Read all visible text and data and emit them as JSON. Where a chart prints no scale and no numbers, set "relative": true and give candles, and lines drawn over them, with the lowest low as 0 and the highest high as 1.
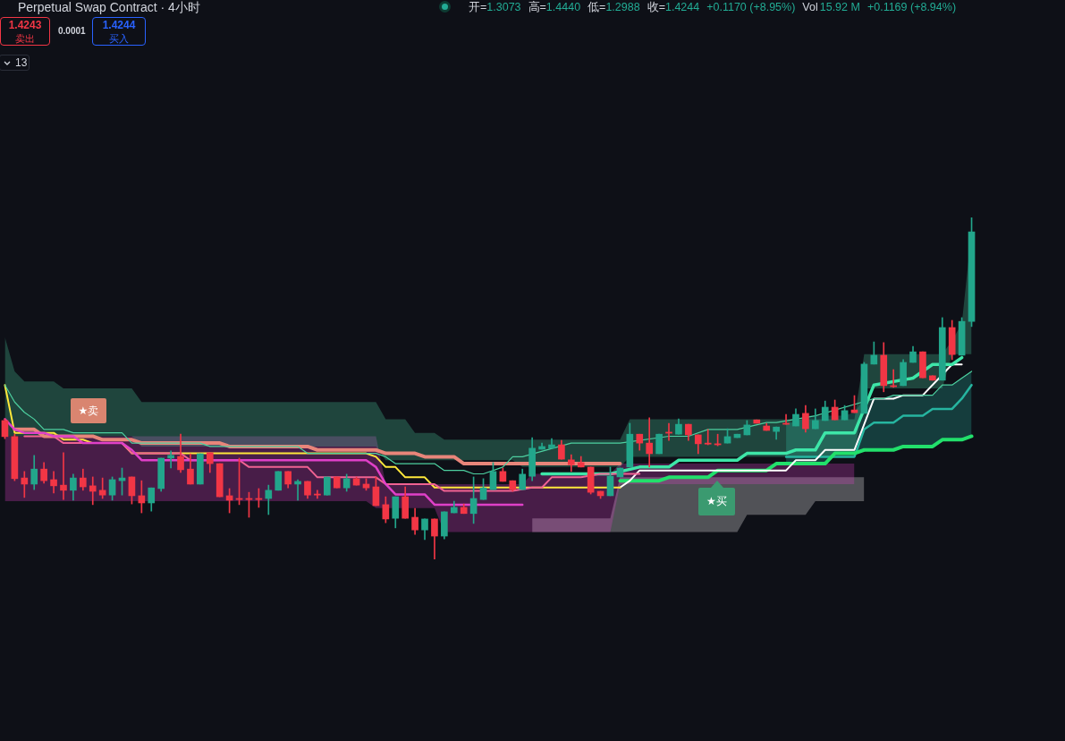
{
  "chart_data": {
    "type": "candlestick",
    "relative": true,
    "title": "Perpetual Swap Contract · 4小时",
    "annotations": [
      "开=",
      "1.3073",
      "高=",
      "1.4440",
      "低=",
      "1.2988",
      "收=",
      "1.4244",
      "+0.1170 (+8.95%)",
      "Vol",
      "15.92 M",
      "+0.1169 (+8.94%)",
      "1.4243",
      "卖出",
      "0.0001",
      "1.4244",
      "买入",
      "13",
      "★卖",
      "★买"
    ],
    "categories": [
      null,
      null,
      null,
      null,
      null,
      null,
      null,
      null,
      null,
      null,
      null,
      null,
      null,
      null,
      null,
      null,
      null,
      null,
      null,
      null,
      null,
      null,
      null,
      null,
      null,
      null,
      null,
      null,
      null,
      null,
      null,
      null,
      null,
      null,
      null,
      null,
      null,
      null,
      null,
      null,
      null,
      null,
      null,
      null,
      null,
      null,
      null,
      null,
      null,
      null,
      null,
      null,
      null,
      null,
      null,
      null,
      null,
      null,
      null,
      null,
      null,
      null,
      null,
      null,
      null,
      null,
      null,
      null,
      null,
      null,
      null,
      null,
      null,
      null,
      null,
      null,
      null,
      null,
      null,
      null,
      null,
      null,
      null,
      null,
      null,
      null,
      null,
      null,
      null,
      null,
      null,
      null,
      null,
      null,
      null,
      null,
      null,
      null,
      null,
      null
    ],
    "ohlc": [
      [
        0.406,
        0.411,
        0.353,
        0.359
      ],
      [
        0.359,
        0.366,
        0.23,
        0.236
      ],
      [
        0.238,
        0.257,
        0.181,
        0.22
      ],
      [
        0.22,
        0.304,
        0.204,
        0.264
      ],
      [
        0.264,
        0.283,
        0.223,
        0.23
      ],
      [
        0.233,
        0.257,
        0.194,
        0.215
      ],
      [
        0.217,
        0.312,
        0.175,
        0.202
      ],
      [
        0.202,
        0.249,
        0.173,
        0.238
      ],
      [
        0.238,
        0.264,
        0.202,
        0.212
      ],
      [
        0.215,
        0.241,
        0.16,
        0.199
      ],
      [
        0.202,
        0.238,
        0.178,
        0.188
      ],
      [
        0.188,
        0.241,
        0.173,
        0.233
      ],
      [
        0.23,
        0.267,
        0.188,
        0.238
      ],
      [
        0.241,
        0.241,
        0.162,
        0.186
      ],
      [
        0.186,
        0.23,
        0.136,
        0.165
      ],
      [
        0.165,
        0.209,
        0.141,
        0.209
      ],
      [
        0.207,
        0.296,
        0.199,
        0.296
      ],
      [
        0.296,
        0.317,
        0.267,
        0.304
      ],
      [
        0.301,
        0.366,
        0.254,
        0.262
      ],
      [
        0.264,
        0.309,
        0.22,
        0.22
      ],
      [
        0.22,
        0.309,
        0.22,
        0.309
      ],
      [
        0.312,
        0.312,
        0.254,
        0.28
      ],
      [
        0.28,
        0.28,
        0.183,
        0.183
      ],
      [
        0.186,
        0.207,
        0.136,
        0.173
      ],
      [
        0.178,
        0.296,
        0.16,
        0.175
      ],
      [
        0.178,
        0.196,
        0.123,
        0.175
      ],
      [
        0.178,
        0.207,
        0.152,
        0.175
      ],
      [
        0.178,
        0.217,
        0.131,
        0.202
      ],
      [
        0.202,
        0.257,
        0.202,
        0.257
      ],
      [
        0.257,
        0.257,
        0.209,
        0.22
      ],
      [
        0.22,
        0.233,
        0.173,
        0.228
      ],
      [
        0.228,
        0.228,
        0.178,
        0.188
      ],
      [
        0.191,
        0.202,
        0.178,
        0.188
      ],
      [
        0.188,
        0.241,
        0.188,
        0.241
      ],
      [
        0.241,
        0.241,
        0.209,
        0.209
      ],
      [
        0.209,
        0.249,
        0.199,
        0.236
      ],
      [
        0.236,
        0.241,
        0.217,
        0.217
      ],
      [
        0.22,
        0.236,
        0.202,
        0.209
      ],
      [
        0.212,
        0.241,
        0.157,
        0.157
      ],
      [
        0.16,
        0.183,
        0.107,
        0.118
      ],
      [
        0.12,
        0.183,
        0.092,
        0.183
      ],
      [
        0.183,
        0.212,
        0.12,
        0.12
      ],
      [
        0.123,
        0.149,
        0.073,
        0.086
      ],
      [
        0.086,
        0.118,
        0.058,
        0.118
      ],
      [
        0.118,
        0.118,
        0,
        0.068
      ],
      [
        0.068,
        0.139,
        0.06,
        0.139
      ],
      [
        0.136,
        0.17,
        0.136,
        0.152
      ],
      [
        0.152,
        0.162,
        0.134,
        0.134
      ],
      [
        0.134,
        0.241,
        0.105,
        0.178
      ],
      [
        0.175,
        0.236,
        0.175,
        0.209
      ],
      [
        0.204,
        0.283,
        0.204,
        0.257
      ],
      [
        0.257,
        0.267,
        0.228,
        0.228
      ],
      [
        0.23,
        0.23,
        0.199,
        0.204
      ],
      [
        0.204,
        0.264,
        0.204,
        0.249
      ],
      [
        0.243,
        0.356,
        0.23,
        0.325
      ],
      [
        0.322,
        0.34,
        0.322,
        0.33
      ],
      [
        0.325,
        0.353,
        0.325,
        0.335
      ],
      [
        0.335,
        0.348,
        0.293,
        0.293
      ],
      [
        0.291,
        0.306,
        0.257,
        0.277
      ],
      [
        0.283,
        0.301,
        0.27,
        0.27
      ],
      [
        0.27,
        0.27,
        0.191,
        0.196
      ],
      [
        0.199,
        0.199,
        0.178,
        0.186
      ],
      [
        0.186,
        0.27,
        0.186,
        0.243
      ],
      [
        0.241,
        0.267,
        0.241,
        0.267
      ],
      [
        0.27,
        0.398,
        0.27,
        0.366
      ],
      [
        0.366,
        0.366,
        0.319,
        0.34
      ],
      [
        0.34,
        0.414,
        0.27,
        0.309
      ],
      [
        0.309,
        0.366,
        0.309,
        0.366
      ],
      [
        0.372,
        0.398,
        0.348,
        0.369
      ],
      [
        0.366,
        0.411,
        0.366,
        0.395
      ],
      [
        0.395,
        0.395,
        0.348,
        0.364
      ],
      [
        0.364,
        0.364,
        0.309,
        0.338
      ],
      [
        0.34,
        0.38,
        0.335,
        0.337
      ],
      [
        0.338,
        0.366,
        0.332,
        0.335
      ],
      [
        0.34,
        0.382,
        0.34,
        0.359
      ],
      [
        0.356,
        0.366,
        0.356,
        0.366
      ],
      [
        0.364,
        0.406,
        0.364,
        0.393
      ],
      [
        0.408,
        0.408,
        0.398,
        0.398
      ],
      [
        0.39,
        0.398,
        0.377,
        0.377
      ],
      [
        0.374,
        0.387,
        0.351,
        0.387
      ],
      [
        0.398,
        0.424,
        0.395,
        0.395
      ],
      [
        0.39,
        0.44,
        0.39,
        0.424
      ],
      [
        0.427,
        0.45,
        0.372,
        0.382
      ],
      [
        0.382,
        0.44,
        0.382,
        0.406
      ],
      [
        0.406,
        0.463,
        0.406,
        0.445
      ],
      [
        0.445,
        0.466,
        0.408,
        0.408
      ],
      [
        0.408,
        0.45,
        0.408,
        0.435
      ],
      [
        0.437,
        0.479,
        0.429,
        0.429
      ],
      [
        0.427,
        0.576,
        0.427,
        0.571
      ],
      [
        0.571,
        0.636,
        0.571,
        0.597
      ],
      [
        0.597,
        0.634,
        0.49,
        0.508
      ],
      [
        0.508,
        0.555,
        0.503,
        0.505
      ],
      [
        0.508,
        0.584,
        0.508,
        0.576
      ],
      [
        0.576,
        0.623,
        0.576,
        0.607
      ],
      [
        0.607,
        0.607,
        0.531,
        0.531
      ],
      [
        0.537,
        0.537,
        0.524,
        0.524
      ],
      [
        0.524,
        0.707,
        0.524,
        0.678
      ],
      [
        0.678,
        0.699,
        0.584,
        0.599
      ],
      [
        0.597,
        0.707,
        0.597,
        0.696
      ],
      [
        0.696,
        1,
        0.681,
        0.958
      ]
    ],
    "series": [
      {
        "type": "line",
        "color": "#4dd0a0",
        "values": [
          0.51,
          0.46,
          0.43,
          0.41,
          0.38,
          0.38,
          0.38,
          0.37,
          0.37,
          0.37,
          0.37,
          0.37,
          0.37,
          0.34,
          0.34,
          0.34,
          0.34,
          0.34,
          0.34,
          0.34,
          0.34,
          0.33,
          0.33,
          0.33,
          0.33,
          0.33,
          0.33,
          0.33,
          0.33,
          0.33,
          0.33,
          0.31,
          0.31,
          0.31,
          0.31,
          0.31,
          0.31,
          0.31,
          0.31,
          0.3,
          0.28,
          0.28,
          0.28,
          0.28,
          0.28,
          0.26,
          0.26,
          0.26,
          0.25,
          0.25,
          null,
          0.27,
          0.3,
          0.3,
          null,
          null,
          null,
          null,
          0.34,
          0.34,
          0.34,
          0.34,
          0.34,
          0.34,
          null,
          null,
          null,
          null,
          0.36,
          0.36,
          0.36,
          null,
          0.38,
          0.38,
          0.38,
          0.38,
          null,
          null,
          0.4,
          0.4,
          null,
          null,
          null,
          0.42,
          null,
          null,
          null,
          null,
          null,
          0.47,
          0.47,
          0.48,
          0.48,
          0.48,
          0.48,
          0.48,
          0.51,
          0.51,
          0.53,
          0.55
        ],
        "lower": [
          0.36,
          0.36,
          0.36,
          0.36,
          0.36,
          0.36,
          0.36,
          0.36,
          0.36,
          0.36,
          0.36,
          0.36,
          0.36,
          0.36,
          0.33,
          0.33,
          0.33,
          0.33,
          0.33,
          0.33,
          0.33,
          0.33,
          0.33,
          0.33,
          0.33,
          0.33,
          0.33,
          0.33,
          0.33,
          0.33,
          0.33,
          0.33,
          0.33,
          0.33,
          0.33,
          0.33,
          0.33,
          0.33,
          0.33,
          0.29,
          0.29,
          0.29,
          0.29,
          0.29,
          0.29,
          0.29,
          0.29,
          0.29,
          0.29,
          0.29,
          0.29,
          0.29,
          0.29,
          0.27,
          0.27,
          0.27,
          0.27,
          0.27,
          0.27,
          0.27,
          0.27,
          0.27,
          0.27,
          0.27,
          0.3,
          0.3,
          0.3,
          0.3,
          0.3,
          0.3,
          0.3,
          0.3,
          0.3,
          0.3,
          0.3,
          0.3,
          0.3,
          0.3,
          0.3,
          0.3,
          0.3,
          0.3,
          0.3,
          0.3,
          0.3,
          0.3,
          0.3,
          0.3,
          0.5,
          0.5,
          0.5,
          0.5,
          0.5,
          0.5,
          0.5,
          0.5,
          0.5,
          0.6,
          0.6,
          0.6
        ],
        "upper": [
          0.65,
          0.55,
          0.52,
          0.52,
          0.52,
          0.52,
          0.5,
          0.5,
          0.5,
          0.5,
          0.5,
          0.5,
          0.5,
          0.5,
          0.46,
          0.46,
          0.46,
          0.46,
          0.46,
          0.46,
          0.46,
          0.46,
          0.46,
          0.46,
          0.46,
          0.46,
          0.46,
          0.46,
          0.46,
          0.46,
          0.46,
          0.46,
          0.46,
          0.46,
          0.46,
          0.46,
          0.46,
          0.46,
          0.46,
          0.41,
          0.41,
          0.41,
          0.37,
          0.37,
          0.37,
          0.35,
          0.35,
          0.35,
          0.35,
          0.35,
          0.35,
          0.35,
          0.35,
          0.35,
          0.35,
          0.35,
          0.35,
          0.35,
          0.35,
          0.35,
          0.35,
          0.35,
          0.35,
          0.35,
          0.41,
          0.41,
          0.41,
          0.41,
          0.41,
          0.41,
          0.41,
          0.41,
          0.41,
          0.41,
          0.41,
          0.41,
          0.41,
          0.41,
          0.41,
          0.41,
          0.41,
          0.41,
          0.41,
          0.41,
          0.41,
          0.41,
          0.41,
          0.41,
          0.6,
          0.6,
          0.6,
          0.6,
          0.6,
          0.6,
          0.6,
          0.6,
          0.6,
          0.64,
          0.69,
          0.96
        ]
      },
      {
        "type": "line",
        "color": "#e040c8",
        "values": [
          0.41,
          0.38,
          0.37,
          0.37,
          0.37,
          0.36,
          0.36,
          0.36,
          0.34,
          0.34,
          0.34,
          0.34,
          0.34,
          0.32,
          0.29,
          0.29,
          0.29,
          0.29,
          0.29,
          0.29,
          0.29,
          0.29,
          0.29,
          0.29,
          0.29,
          0.29,
          0.29,
          0.29,
          0.29,
          0.29,
          0.29,
          0.29,
          0.29,
          0.29,
          0.29,
          0.29,
          0.29,
          0.29,
          0.27,
          0.22,
          0.19,
          0.19,
          0.19,
          0.19,
          0.16,
          0.16,
          0.16,
          0.16,
          null,
          0.16,
          0.16,
          0.16,
          0.16,
          0.16,
          null,
          null,
          null,
          null,
          null,
          null,
          null,
          null,
          null,
          null,
          null,
          null,
          null,
          null,
          null,
          null,
          null,
          null,
          null,
          null,
          null,
          null,
          null,
          null,
          null,
          null,
          null,
          null,
          null,
          null,
          null,
          null,
          null,
          null,
          null,
          null,
          null,
          null,
          null,
          null,
          null,
          null,
          null,
          null,
          null,
          null
        ],
        "lower": [
          0.17,
          0.17,
          0.17,
          0.17,
          0.17,
          0.17,
          0.17,
          0.17,
          0.17,
          0.17,
          0.17,
          0.17,
          0.17,
          0.17,
          0.17,
          0.17,
          0.17,
          0.17,
          0.17,
          0.17,
          0.17,
          0.17,
          0.17,
          0.17,
          0.17,
          0.17,
          0.17,
          0.17,
          0.17,
          0.17,
          0.17,
          0.17,
          0.17,
          0.17,
          0.17,
          0.17,
          0.17,
          0.17,
          0.15,
          0.15,
          0.15,
          0.15,
          0.15,
          0.15,
          0.15,
          0.08,
          0.08,
          0.08,
          0.08,
          0.08,
          0.08,
          0.08,
          0.08,
          0.08,
          0.08,
          0.08,
          0.08,
          0.08,
          0.08,
          0.08,
          0.08,
          0.08,
          0.08,
          0.22,
          0.22,
          0.22,
          0.22,
          0.22,
          0.22,
          0.22,
          0.22,
          0.22,
          0.22,
          0.22,
          0.22,
          0.22,
          0.22,
          0.22,
          0.22,
          0.22,
          0.22,
          0.22,
          0.22,
          0.22,
          0.22,
          0.22,
          0.22,
          0.22,
          null,
          null,
          null,
          null,
          null,
          null,
          null,
          null,
          null,
          null,
          null,
          null
        ],
        "upper": [
          0.36,
          0.36,
          0.36,
          0.36,
          0.36,
          0.36,
          0.36,
          0.36,
          0.36,
          0.36,
          0.36,
          0.36,
          0.36,
          0.36,
          0.36,
          0.36,
          0.36,
          0.36,
          0.36,
          0.36,
          0.36,
          0.36,
          0.36,
          0.36,
          0.36,
          0.36,
          0.36,
          0.36,
          0.36,
          0.36,
          0.36,
          0.36,
          0.36,
          0.36,
          0.36,
          0.36,
          0.36,
          0.36,
          0.36,
          0.22,
          0.22,
          0.22,
          0.22,
          0.22,
          0.22,
          0.22,
          0.22,
          0.22,
          0.22,
          0.22,
          0.22,
          0.22,
          0.22,
          0.22,
          0.25,
          0.25,
          0.25,
          0.25,
          0.25,
          0.25,
          0.25,
          0.25,
          0.25,
          0.28,
          0.28,
          0.28,
          0.28,
          0.28,
          0.28,
          0.28,
          0.28,
          0.28,
          0.28,
          0.28,
          0.28,
          0.28,
          0.28,
          0.28,
          0.28,
          0.28,
          0.28,
          0.28,
          0.28,
          0.28,
          0.28,
          0.28,
          0.28,
          0.28,
          null,
          null,
          null,
          null,
          null,
          null,
          null,
          null,
          null,
          null,
          null,
          null
        ]
      },
      {
        "type": "line",
        "color": "#e8857a",
        "values": [
          null,
          0.38,
          0.38,
          0.38,
          0.36,
          0.36,
          0.36,
          0.36,
          0.36,
          0.36,
          0.35,
          0.35,
          0.35,
          0.35,
          0.34,
          0.34,
          0.34,
          0.34,
          0.34,
          0.34,
          0.34,
          0.34,
          0.34,
          0.33,
          0.33,
          0.33,
          0.33,
          0.33,
          0.33,
          0.33,
          0.33,
          0.33,
          0.32,
          0.32,
          0.32,
          0.32,
          0.32,
          0.32,
          0.32,
          0.31,
          0.31,
          0.31,
          0.31,
          0.3,
          0.3,
          0.3,
          0.3,
          0.28,
          0.28,
          0.28,
          0.28,
          0.28,
          0.28,
          0.28,
          null,
          0.28,
          0.28,
          0.28,
          null,
          null,
          0.28,
          0.28,
          0.28,
          0.28,
          null,
          null,
          null,
          null,
          null,
          null,
          null,
          null,
          null,
          null,
          null,
          null,
          null,
          null,
          null,
          null,
          null,
          null,
          null,
          null,
          null,
          null,
          null,
          null,
          null,
          null,
          null,
          null,
          null,
          null,
          null,
          null,
          null,
          null,
          null,
          null
        ]
      },
      {
        "type": "line",
        "color": "#f06292",
        "values": [
          null,
          null,
          0.36,
          0.36,
          0.36,
          0.36,
          0.34,
          0.34,
          0.34,
          0.34,
          0.34,
          0.34,
          0.34,
          0.31,
          0.31,
          0.31,
          0.31,
          0.31,
          0.31,
          0.29,
          null,
          null,
          0.29,
          0.29,
          0.29,
          0.27,
          0.27,
          0.27,
          0.27,
          0.27,
          0.27,
          0.27,
          0.24,
          null,
          null,
          0.24,
          0.24,
          0.24,
          0.24,
          0.22,
          0.22,
          0.22,
          0.22,
          0.22,
          0.22,
          0.2,
          0.2,
          0.2,
          0.2,
          null,
          0.2,
          0.2,
          0.2,
          null,
          0.21,
          0.21,
          0.24,
          0.24,
          0.24,
          0.24,
          null,
          0.25,
          0.25,
          null,
          0.25,
          0.25,
          null,
          null,
          null,
          null,
          null,
          null,
          null,
          null,
          null,
          null,
          null,
          null,
          null,
          null,
          null,
          null,
          null,
          null,
          null,
          null,
          null,
          null,
          null,
          null,
          null,
          null,
          null,
          null,
          null,
          null,
          null,
          null,
          null,
          null
        ]
      },
      {
        "type": "line",
        "color": "#ffe83b",
        "values": [
          0.51,
          0.37,
          0.37,
          0.37,
          0.37,
          0.37,
          0.35,
          0.35,
          0.35,
          0.34,
          0.34,
          0.34,
          0.34,
          0.31,
          0.31,
          0.31,
          0.31,
          null,
          0.31,
          0.31,
          null,
          null,
          0.31,
          0.31,
          0.31,
          0.31,
          0.31,
          0.31,
          0.31,
          0.31,
          0.31,
          0.31,
          0.31,
          0.31,
          0.31,
          0.31,
          0.31,
          0.31,
          0.3,
          0.27,
          0.27,
          0.24,
          0.24,
          0.24,
          0.21,
          0.21,
          0.21,
          0.21,
          0.21,
          null,
          null,
          0.21,
          null,
          null,
          0.21,
          0.21,
          0.21,
          0.21,
          0.21,
          0.21,
          null,
          0.21,
          null,
          0.21,
          null,
          null,
          null,
          null,
          null,
          null,
          null,
          null,
          null,
          null,
          null,
          null,
          null,
          null,
          null,
          null,
          null,
          null,
          null,
          null,
          null,
          null,
          null,
          null,
          null,
          null,
          null,
          null,
          null,
          null,
          null,
          null,
          null,
          null,
          null,
          null
        ]
      },
      {
        "type": "line",
        "color": "#3ee6a8",
        "values": [
          null,
          null,
          null,
          null,
          null,
          null,
          null,
          null,
          null,
          null,
          null,
          null,
          null,
          null,
          null,
          null,
          null,
          null,
          null,
          null,
          null,
          null,
          null,
          null,
          null,
          null,
          null,
          null,
          null,
          null,
          null,
          null,
          null,
          null,
          null,
          null,
          null,
          null,
          null,
          null,
          null,
          null,
          null,
          null,
          null,
          null,
          null,
          null,
          null,
          null,
          null,
          null,
          null,
          null,
          null,
          0.25,
          0.25,
          0.25,
          0.25,
          0.25,
          null,
          0.25,
          0.25,
          null,
          null,
          0.27,
          0.27,
          0.27,
          0.27,
          0.29,
          0.29,
          0.29,
          0.29,
          0.29,
          0.29,
          0.29,
          0.31,
          0.31,
          0.31,
          0.31,
          0.31,
          0.32,
          0.32,
          0.32,
          0.37,
          0.37,
          0.37,
          0.37,
          null,
          0.51,
          null,
          null,
          null,
          0.53,
          null,
          0.57,
          null,
          0.57,
          0.59,
          null
        ]
      },
      {
        "type": "line",
        "color": "#ffffff",
        "values": [
          null,
          null,
          null,
          null,
          null,
          null,
          null,
          null,
          null,
          null,
          null,
          null,
          null,
          null,
          null,
          null,
          null,
          null,
          null,
          null,
          null,
          null,
          null,
          null,
          null,
          null,
          null,
          null,
          null,
          null,
          null,
          null,
          null,
          null,
          null,
          null,
          null,
          null,
          null,
          null,
          null,
          null,
          null,
          null,
          null,
          null,
          null,
          null,
          null,
          null,
          null,
          null,
          null,
          null,
          null,
          null,
          null,
          null,
          null,
          null,
          null,
          null,
          null,
          0.21,
          0.23,
          0.26,
          0.26,
          0.26,
          0.26,
          0.26,
          0.26,
          0.26,
          0.26,
          0.26,
          0.26,
          0.26,
          0.26,
          0.26,
          0.26,
          0.26,
          0.26,
          0.29,
          0.29,
          0.29,
          0.32,
          0.32,
          0.32,
          0.32,
          null,
          0.47,
          0.47,
          0.47,
          0.48,
          0.48,
          0.48,
          null,
          null,
          0.57,
          0.57,
          null
        ],
        "lower": [
          null,
          null,
          null,
          null,
          null,
          null,
          null,
          null,
          null,
          null,
          null,
          null,
          null,
          null,
          null,
          null,
          null,
          null,
          null,
          null,
          null,
          null,
          null,
          null,
          null,
          null,
          null,
          null,
          null,
          null,
          null,
          null,
          null,
          null,
          null,
          null,
          null,
          null,
          null,
          null,
          null,
          null,
          null,
          null,
          null,
          null,
          null,
          null,
          null,
          null,
          null,
          null,
          null,
          null,
          0.08,
          0.08,
          0.08,
          0.08,
          0.08,
          0.08,
          0.08,
          0.08,
          0.08,
          0.08,
          0.08,
          0.08,
          0.08,
          0.08,
          0.08,
          0.08,
          0.08,
          0.08,
          0.08,
          0.08,
          0.08,
          0.08,
          0.13,
          0.13,
          0.13,
          0.13,
          0.13,
          0.13,
          0.13,
          0.17,
          0.17,
          0.17,
          0.17,
          0.17,
          0.17,
          null,
          null,
          null,
          null,
          null,
          null,
          null,
          null,
          null,
          null,
          null
        ],
        "upper": [
          null,
          null,
          null,
          null,
          null,
          null,
          null,
          null,
          null,
          null,
          null,
          null,
          null,
          null,
          null,
          null,
          null,
          null,
          null,
          null,
          null,
          null,
          null,
          null,
          null,
          null,
          null,
          null,
          null,
          null,
          null,
          null,
          null,
          null,
          null,
          null,
          null,
          null,
          null,
          null,
          null,
          null,
          null,
          null,
          null,
          null,
          null,
          null,
          null,
          null,
          null,
          null,
          null,
          null,
          0.12,
          0.12,
          0.12,
          0.12,
          0.12,
          0.12,
          0.12,
          0.12,
          0.12,
          0.24,
          0.24,
          0.24,
          0.24,
          0.24,
          0.24,
          0.24,
          0.24,
          0.24,
          0.24,
          0.24,
          0.24,
          0.24,
          0.24,
          0.24,
          0.24,
          0.24,
          0.24,
          0.24,
          0.24,
          0.24,
          0.24,
          0.24,
          0.24,
          0.24,
          0.24,
          null,
          null,
          null,
          null,
          null,
          null,
          null,
          null,
          null,
          null,
          null
        ]
      },
      {
        "type": "line",
        "color": "#22e06b",
        "values": [
          null,
          null,
          null,
          null,
          null,
          null,
          null,
          null,
          null,
          null,
          null,
          null,
          null,
          null,
          null,
          null,
          null,
          null,
          null,
          null,
          null,
          null,
          null,
          null,
          null,
          null,
          null,
          null,
          null,
          null,
          null,
          null,
          null,
          null,
          null,
          null,
          null,
          null,
          null,
          null,
          null,
          null,
          null,
          null,
          null,
          null,
          null,
          null,
          null,
          null,
          null,
          null,
          null,
          null,
          null,
          null,
          null,
          null,
          null,
          null,
          null,
          null,
          null,
          0.23,
          0.23,
          0.23,
          0.23,
          0.23,
          0.24,
          0.24,
          0.24,
          0.24,
          0.24,
          0.26,
          0.26,
          0.26,
          0.26,
          0.26,
          0.26,
          0.28,
          0.28,
          0.28,
          0.28,
          0.28,
          0.28,
          0.31,
          0.31,
          0.31,
          0.32,
          0.32,
          0.32,
          0.32,
          0.33,
          0.33,
          0.33,
          0.33,
          0.35,
          0.35,
          0.35,
          0.36
        ]
      },
      {
        "type": "line",
        "color": "#26b5a0",
        "values": [
          null,
          null,
          null,
          null,
          null,
          null,
          null,
          null,
          null,
          null,
          null,
          null,
          null,
          null,
          null,
          null,
          null,
          null,
          null,
          null,
          null,
          null,
          null,
          null,
          null,
          null,
          null,
          null,
          null,
          null,
          null,
          null,
          null,
          null,
          null,
          null,
          null,
          null,
          null,
          null,
          null,
          null,
          null,
          null,
          null,
          null,
          null,
          null,
          null,
          null,
          null,
          null,
          null,
          null,
          null,
          null,
          null,
          null,
          null,
          null,
          null,
          null,
          null,
          null,
          null,
          null,
          null,
          null,
          null,
          null,
          null,
          null,
          null,
          null,
          null,
          null,
          null,
          null,
          null,
          null,
          0.3,
          0.3,
          0.3,
          0.3,
          0.3,
          0.3,
          0.3,
          0.3,
          0.38,
          0.4,
          0.4,
          0.4,
          0.42,
          0.42,
          0.42,
          0.44,
          0.44,
          0.44,
          0.47,
          0.51
        ],
        "lower": [
          null,
          null,
          null,
          null,
          null,
          null,
          null,
          null,
          null,
          null,
          null,
          null,
          null,
          null,
          null,
          null,
          null,
          null,
          null,
          null,
          null,
          null,
          null,
          null,
          null,
          null,
          null,
          null,
          null,
          null,
          null,
          null,
          null,
          null,
          null,
          null,
          null,
          null,
          null,
          null,
          null,
          null,
          null,
          null,
          null,
          null,
          null,
          null,
          null,
          null,
          null,
          null,
          null,
          null,
          null,
          null,
          null,
          null,
          null,
          null,
          null,
          null,
          null,
          null,
          null,
          null,
          null,
          null,
          null,
          null,
          null,
          null,
          null,
          null,
          null,
          null,
          null,
          null,
          null,
          null,
          0.28,
          0.28,
          0.28,
          0.28,
          0.28,
          0.31,
          0.31,
          0.31,
          0.32,
          0.32,
          0.32,
          0.32,
          0.33,
          0.33,
          0.33,
          0.33,
          0.35,
          0.35,
          0.35,
          0.36
        ],
        "upper": [
          null,
          null,
          null,
          null,
          null,
          null,
          null,
          null,
          null,
          null,
          null,
          null,
          null,
          null,
          null,
          null,
          null,
          null,
          null,
          null,
          null,
          null,
          null,
          null,
          null,
          null,
          null,
          null,
          null,
          null,
          null,
          null,
          null,
          null,
          null,
          null,
          null,
          null,
          null,
          null,
          null,
          null,
          null,
          null,
          null,
          null,
          null,
          null,
          null,
          null,
          null,
          null,
          null,
          null,
          null,
          null,
          null,
          null,
          null,
          null,
          null,
          null,
          null,
          null,
          null,
          null,
          null,
          null,
          null,
          null,
          null,
          null,
          null,
          null,
          null,
          null,
          null,
          null,
          null,
          null,
          0.4,
          0.4,
          0.42,
          0.42,
          0.42,
          0.42,
          0.42,
          0.43,
          0.47,
          0.47,
          0.47,
          0.48,
          0.48,
          0.48,
          0.48,
          0.48,
          0.51,
          0.51,
          0.53,
          0.55
        ]
      }
    ]
  }
}
